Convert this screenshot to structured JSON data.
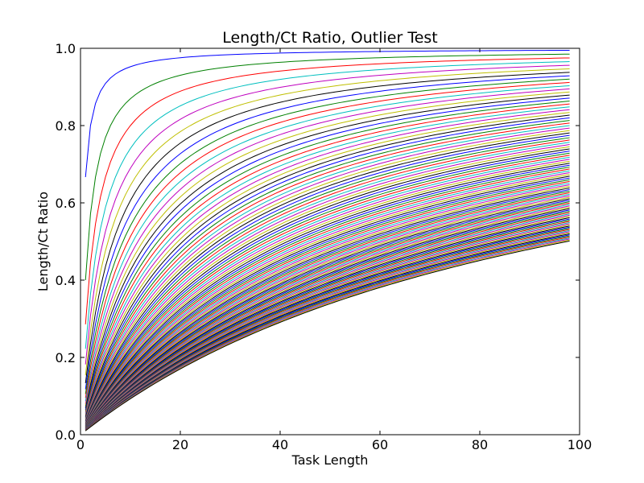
{
  "chart_data": {
    "type": "line",
    "title": "Length/Ct Ratio, Outlier Test",
    "xlabel": "Task Length",
    "ylabel": "Length/Ct Ratio",
    "xlim": [
      0,
      100
    ],
    "ylim": [
      0.0,
      1.0
    ],
    "x_ticks": [
      "0",
      "20",
      "40",
      "60",
      "80",
      "100"
    ],
    "y_ticks": [
      "0.0",
      "0.2",
      "0.4",
      "0.6",
      "0.8",
      "1.0"
    ],
    "grid": false,
    "legend": "none",
    "series_colors": [
      "#0000ff",
      "#008000",
      "#ff0000",
      "#00bfbf",
      "#bf00bf",
      "#bfbf00",
      "#000000"
    ],
    "series_formula": "y = x / (x + c)",
    "x": {
      "start": 1,
      "end": 98,
      "step": 1
    },
    "c": {
      "start": 0.5,
      "end": 98,
      "step": 1
    }
  }
}
